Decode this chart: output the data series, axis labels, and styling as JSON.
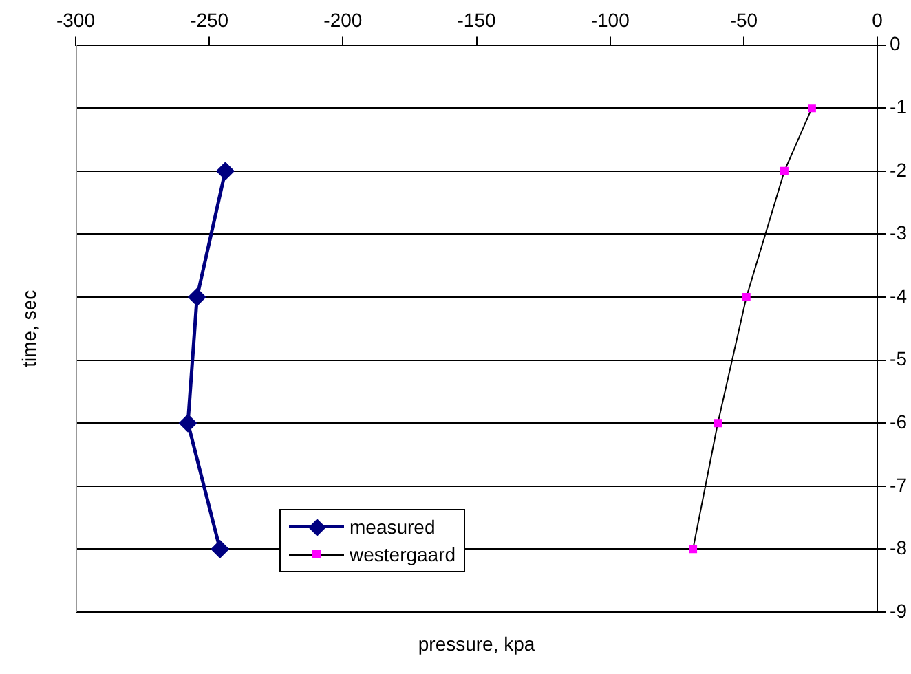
{
  "chart_data": {
    "type": "line",
    "xlabel": "pressure, kpa",
    "ylabel": "time, sec",
    "xlim": [
      -300,
      0
    ],
    "xticks": [
      -300,
      -250,
      -200,
      -150,
      -100,
      -50,
      0
    ],
    "ylim": [
      -9,
      0
    ],
    "yticks": [
      -9,
      -8,
      -7,
      -6,
      -5,
      -4,
      -3,
      -2,
      -1,
      0
    ],
    "grid": "y",
    "legend": "bottom",
    "series": [
      {
        "name": "measured",
        "color": "#000080",
        "marker": "diamond",
        "x": [
          -244,
          -254.6,
          -258,
          -246
        ],
        "values": [
          -2,
          -4,
          -6,
          -8
        ]
      },
      {
        "name": "westergaard",
        "color": "#ff00ff",
        "marker": "square",
        "x": [
          -24.5,
          -34.8,
          -49,
          -59.7,
          -69
        ],
        "values": [
          -1,
          -2,
          -4,
          -6,
          -8
        ]
      }
    ]
  }
}
